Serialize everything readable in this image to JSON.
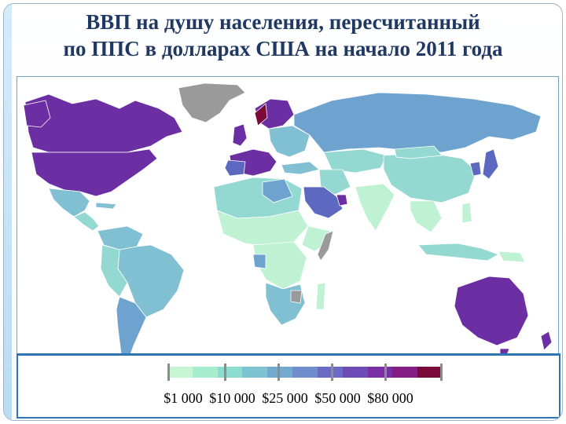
{
  "title": {
    "line1": "ВВП на душу населения, пересчитанный",
    "line2": "по ППС в долларах США на начало 2011 года"
  },
  "legend": {
    "labels": [
      "$1 000",
      "$10 000",
      "$25 000",
      "$50 000",
      "$80 000"
    ],
    "colors": [
      "#c8f5d2",
      "#a8ecd0",
      "#8ddcd0",
      "#7dc3d2",
      "#73a8cf",
      "#6f8ccc",
      "#6a6cc4",
      "#6e4cb7",
      "#7a2fa6",
      "#841d84",
      "#7a0a3a"
    ]
  },
  "map": {
    "colors": {
      "no_data": "#9a9a9a",
      "very_low": "#bff2d3",
      "low": "#a7e9d0",
      "lower_mid": "#93d9d2",
      "mid": "#80c0d2",
      "upper_mid": "#6fa3cf",
      "high": "#5d68c0",
      "very_high": "#6b2fa3",
      "extreme": "#7a0a3a"
    }
  }
}
